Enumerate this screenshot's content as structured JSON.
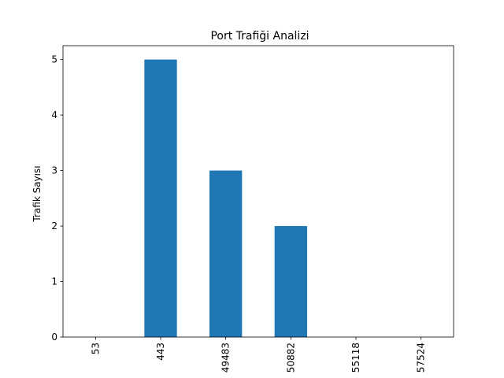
{
  "chart_data": {
    "type": "bar",
    "title": "Port Trafiği Analizi",
    "xlabel": "",
    "ylabel": "Trafik Sayısı",
    "categories": [
      "53",
      "443",
      "49483",
      "50882",
      "55118",
      "57524"
    ],
    "values": [
      0,
      5,
      3,
      2,
      0,
      0
    ],
    "ylim": [
      0,
      5.25
    ],
    "yticks": [
      0,
      1,
      2,
      3,
      4,
      5
    ],
    "bar_color": "#1f77b4",
    "grid": false,
    "legend": "none"
  }
}
